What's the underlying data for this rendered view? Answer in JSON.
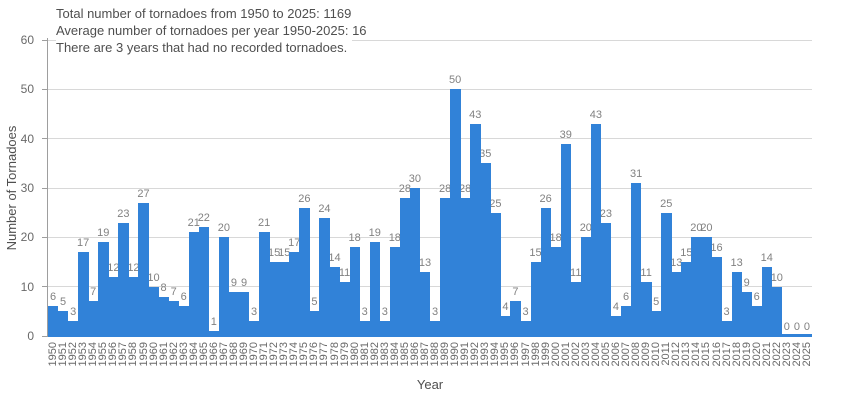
{
  "chart_data": {
    "type": "bar",
    "title_lines": [
      "Total number of tornadoes from 1950 to 2025: 1169",
      "Average number of tornadoes per year 1950-2025: 16",
      "There are 3 years that had no recorded tornadoes."
    ],
    "xlabel": "Year",
    "ylabel": "Number of Tornadoes",
    "ylim": [
      0,
      60
    ],
    "yticks": [
      0,
      10,
      20,
      30,
      40,
      50,
      60
    ],
    "grid": true,
    "legend": "none",
    "x": [
      1950,
      1951,
      1952,
      1953,
      1954,
      1955,
      1956,
      1957,
      1958,
      1959,
      1960,
      1961,
      1962,
      1963,
      1964,
      1965,
      1966,
      1967,
      1968,
      1969,
      1970,
      1971,
      1972,
      1973,
      1974,
      1975,
      1976,
      1977,
      1978,
      1979,
      1980,
      1981,
      1982,
      1983,
      1984,
      1985,
      1986,
      1987,
      1988,
      1989,
      1990,
      1991,
      1992,
      1993,
      1994,
      1995,
      1996,
      1997,
      1998,
      1999,
      2000,
      2001,
      2002,
      2003,
      2004,
      2005,
      2006,
      2007,
      2008,
      2009,
      2010,
      2011,
      2012,
      2013,
      2014,
      2015,
      2016,
      2017,
      2018,
      2019,
      2020,
      2021,
      2022,
      2023,
      2024,
      2025
    ],
    "values": [
      6,
      5,
      3,
      17,
      7,
      19,
      12,
      23,
      12,
      27,
      10,
      8,
      7,
      6,
      21,
      22,
      1,
      20,
      9,
      9,
      3,
      21,
      15,
      15,
      17,
      26,
      5,
      24,
      14,
      11,
      18,
      3,
      19,
      3,
      18,
      28,
      30,
      13,
      3,
      28,
      50,
      28,
      43,
      35,
      25,
      4,
      7,
      3,
      15,
      26,
      18,
      39,
      11,
      20,
      43,
      23,
      4,
      6,
      31,
      11,
      5,
      25,
      13,
      15,
      20,
      20,
      16,
      3,
      13,
      9,
      6,
      14,
      10,
      0,
      0,
      0
    ],
    "colors": {
      "bar": "#3182d8",
      "baseline": "#3182d8",
      "gridline": "#d8d8d8",
      "axis_line": "#9e9e9e",
      "tick_label": "#696969",
      "value_label": "#818181",
      "title_text": "#4f4f4f",
      "background": "#ffffff"
    }
  }
}
